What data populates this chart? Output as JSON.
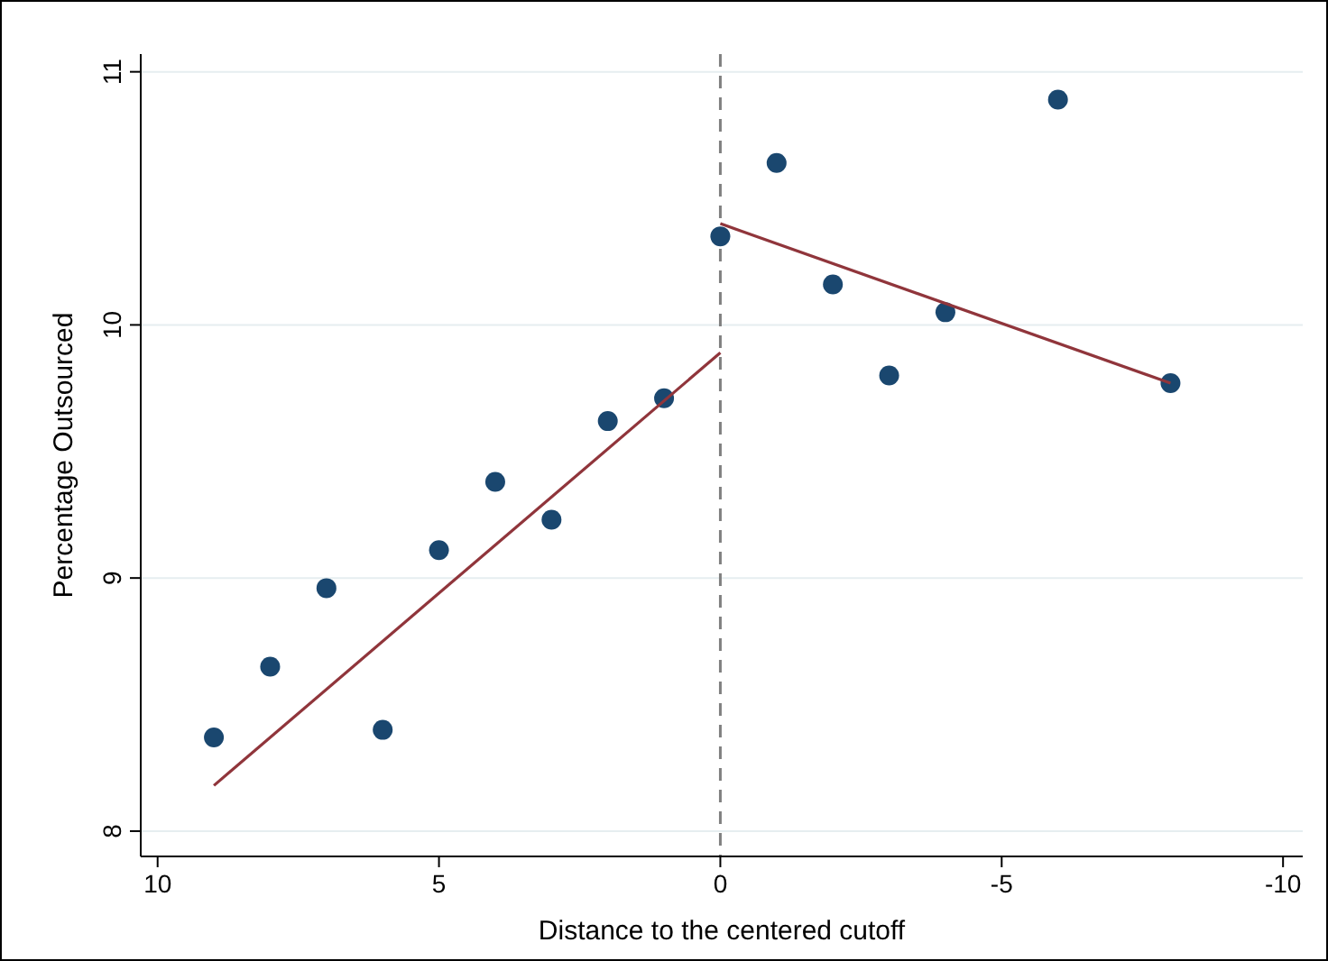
{
  "chart_data": {
    "type": "scatter",
    "xlabel": "Distance to the centered cutoff",
    "ylabel": "Percentage Outsourced",
    "xlim": [
      10.3,
      -10.35
    ],
    "xticks": [
      10,
      5,
      0,
      -5,
      -10
    ],
    "ylim": [
      7.9,
      11.07
    ],
    "yticks": [
      8,
      9,
      10,
      11
    ],
    "grid": "y",
    "series": [
      {
        "marker": "circle",
        "color": "#1a476f",
        "x": [
          9,
          8,
          7,
          6,
          5,
          4,
          3,
          2,
          1,
          0,
          -1,
          -2,
          -3,
          -4,
          -6,
          -8
        ],
        "values": [
          8.37,
          8.65,
          8.96,
          8.4,
          9.11,
          9.38,
          9.23,
          9.62,
          9.71,
          10.35,
          10.64,
          10.16,
          9.8,
          10.05,
          10.89,
          9.77
        ]
      },
      {
        "type": "line",
        "marker": "none",
        "color": "#90353b",
        "x": [
          9,
          0
        ],
        "values": [
          8.18,
          9.89
        ]
      },
      {
        "type": "line",
        "marker": "none",
        "color": "#90353b",
        "x": [
          0,
          -8
        ],
        "values": [
          10.4,
          9.77
        ]
      }
    ],
    "ref_lines": [
      {
        "axis": "x",
        "value": 0,
        "color": "#808080",
        "line_style": "dashed"
      }
    ]
  }
}
